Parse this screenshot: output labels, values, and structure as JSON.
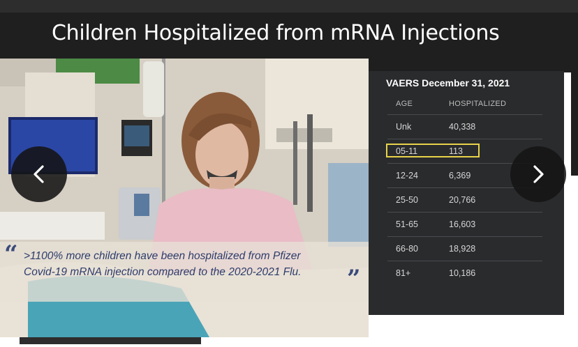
{
  "slide": {
    "title": "Children Hospitalized from mRNA Injections"
  },
  "photo": {
    "alt": ""
  },
  "quote": {
    "open_mark": "“",
    "close_mark": "”",
    "line1": ">1100% more children have been hospitalized from Pfizer",
    "line2": "Covid-19 mRNA injection compared to the 2020-2021 Flu."
  },
  "table": {
    "title": "VAERS December 31, 2021",
    "headers": [
      "AGE",
      "HOSPITALIZED"
    ],
    "rows": [
      {
        "age": "Unk",
        "hospitalized": "40,338"
      },
      {
        "age": "05-11",
        "hospitalized": "113"
      },
      {
        "age": "12-24",
        "hospitalized": "6,369"
      },
      {
        "age": "25-50",
        "hospitalized": "20,766"
      },
      {
        "age": "51-65",
        "hospitalized": "16,603"
      },
      {
        "age": "66-80",
        "hospitalized": "18,928"
      },
      {
        "age": "81+",
        "hospitalized": "10,186"
      }
    ],
    "highlight_color": "#e8d34a"
  },
  "nav": {
    "prev_icon": "chevron-left-icon",
    "next_icon": "chevron-right-icon"
  }
}
